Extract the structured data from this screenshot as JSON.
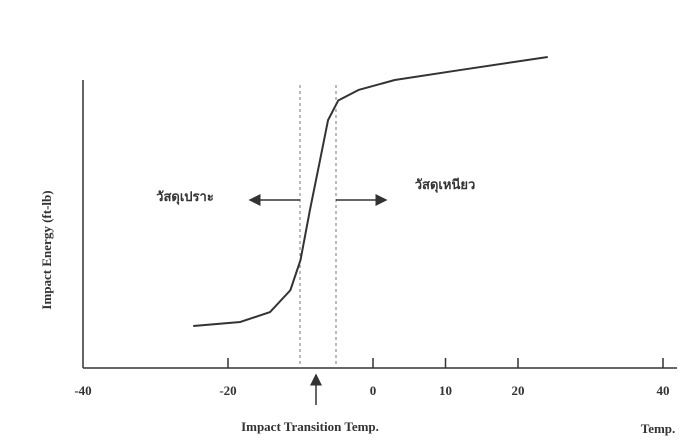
{
  "chart_data": {
    "type": "line",
    "x_label": "Impact Transition Temp.",
    "x_unit_label": "Temp.",
    "y_label": "Impact Energy (ft-lb)",
    "annotations": [
      "วัสดุเปราะ",
      "วัสดุเหนียว"
    ],
    "x": [
      -24.8,
      -18.3,
      -14.2,
      -11.4,
      -10,
      -8.7,
      -7.3,
      -6.2,
      -4.8,
      -2,
      3,
      12,
      24.1
    ],
    "values": [
      13.5,
      14.8,
      18,
      25,
      34.7,
      50.8,
      66.9,
      79.7,
      86,
      89.4,
      92.6,
      95.8,
      100
    ],
    "color": "#333333",
    "xlim": [
      -40,
      42
    ],
    "ylim": [
      0,
      100
    ],
    "xticks": [
      -40,
      -20,
      0,
      10,
      20,
      40
    ],
    "grid": false
  }
}
